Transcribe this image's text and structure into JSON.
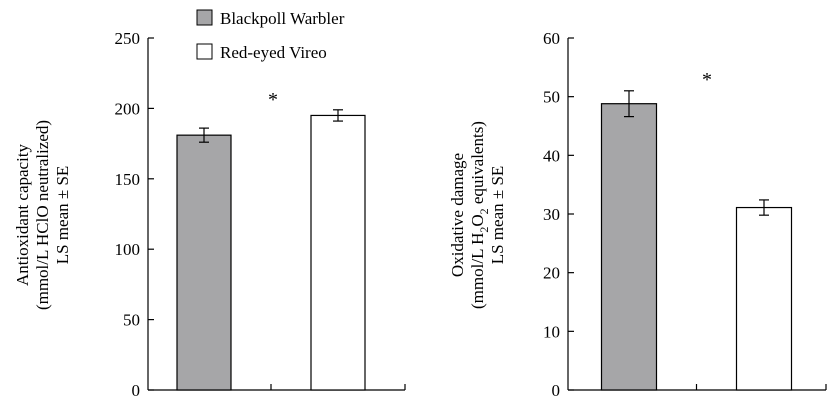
{
  "legend": {
    "items": [
      {
        "label": "Blackpoll Warbler",
        "color": "#a6a6a8"
      },
      {
        "label": "Red-eyed Vireo",
        "color": "#ffffff"
      }
    ]
  },
  "chart_data": [
    {
      "type": "bar",
      "categories": [
        "Blackpoll Warbler",
        "Red-eyed Vireo"
      ],
      "values": [
        181,
        195
      ],
      "errors": [
        5,
        4
      ],
      "colors": [
        "#a6a6a8",
        "#ffffff"
      ],
      "ylim": [
        0,
        250
      ],
      "yticks": [
        0,
        50,
        100,
        150,
        200,
        250
      ],
      "ylabel_lines": [
        "Antioxidant capacity",
        "(mmol/L HClO neutralized)",
        "LS mean ± SE"
      ],
      "annotation": "*"
    },
    {
      "type": "bar",
      "categories": [
        "Blackpoll Warbler",
        "Red-eyed Vireo"
      ],
      "values": [
        48.8,
        31.1
      ],
      "errors": [
        2.2,
        1.3
      ],
      "colors": [
        "#a6a6a8",
        "#ffffff"
      ],
      "ylim": [
        0,
        60
      ],
      "yticks": [
        0,
        10,
        20,
        30,
        40,
        50,
        60
      ],
      "ylabel_lines": [
        "Oxidative damage",
        "(mmol/L H₂O₂ equivalents)",
        "LS mean ± SE"
      ],
      "ylabel_parts": {
        "prefix": "(mmol/L H",
        "sub1": "2",
        "mid": "O",
        "sub2": "2",
        "suffix": " equivalents)"
      },
      "annotation": "*"
    }
  ]
}
